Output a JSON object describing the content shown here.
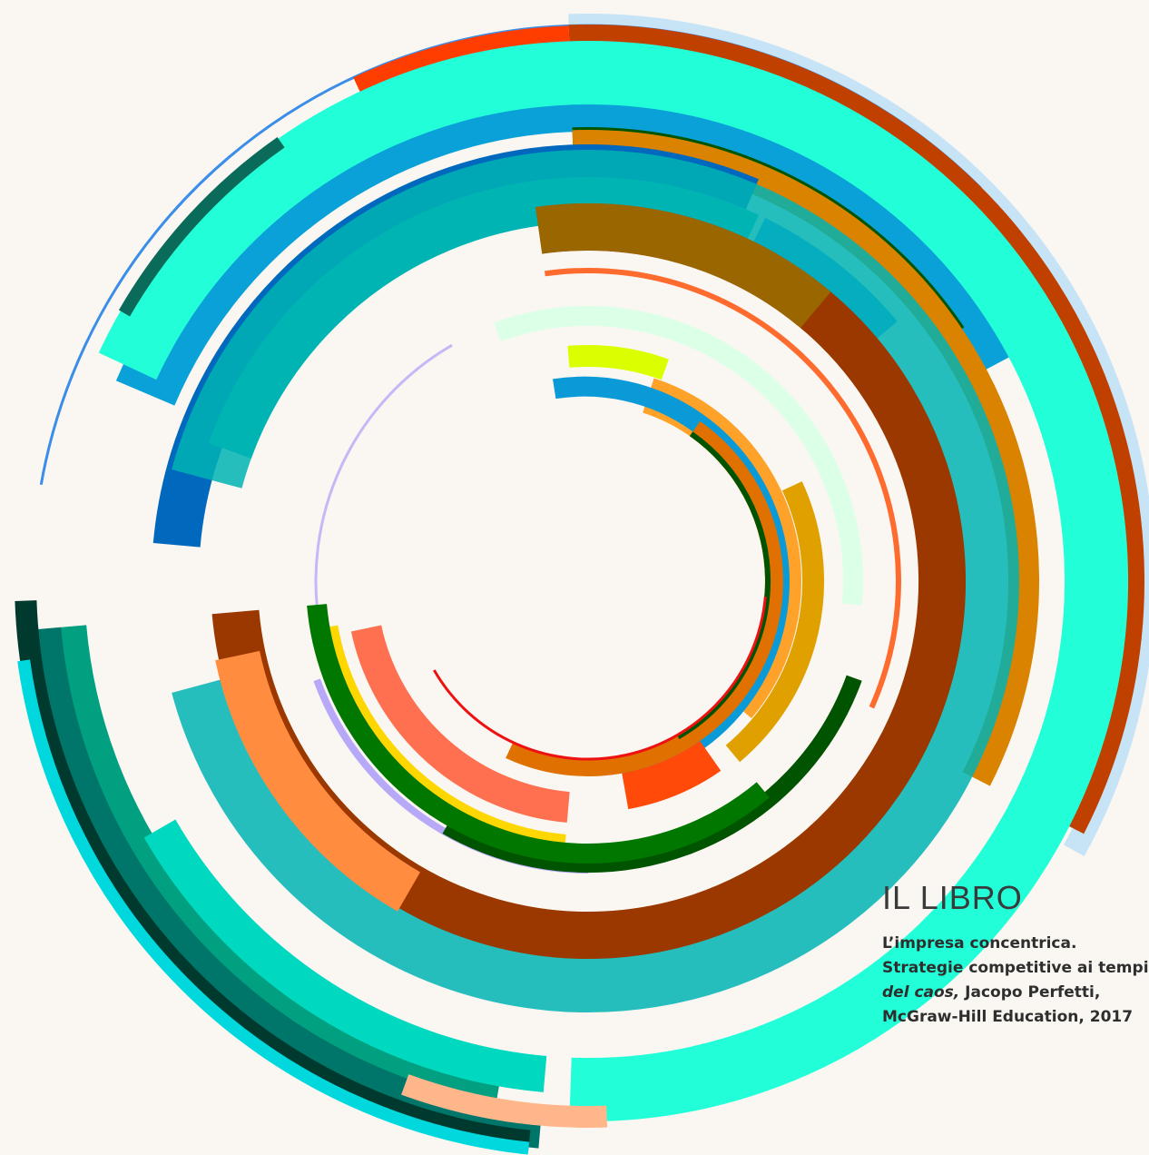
{
  "section": {
    "title": "IL LIBRO"
  },
  "book": {
    "line1": "L’impresa concentrica.",
    "line2": "Strategie competitive ai tempi",
    "line3_italic": "del caos,",
    "line3_rest": " Jacopo Perfetti,",
    "line4": "McGraw-Hill Education, 2017"
  },
  "colors": {
    "background": "#faf7f2",
    "text": "#3a3a3a"
  },
  "artwork": {
    "name": "concentric-arcs-graphic",
    "arcs": [
      {
        "color": "#c7e4f7"
      },
      {
        "color": "#3a8de8"
      },
      {
        "color": "#c04000"
      },
      {
        "color": "#ff3d00"
      },
      {
        "color": "#003a1f"
      },
      {
        "color": "#0aa0d8"
      },
      {
        "color": "#d98300"
      },
      {
        "color": "#005400"
      },
      {
        "color": "#2090ff"
      },
      {
        "color": "#0068bd"
      },
      {
        "color": "#00b4b4"
      },
      {
        "color": "#00a080"
      },
      {
        "color": "#22ffd8"
      },
      {
        "color": "#00d8c0"
      },
      {
        "color": "#00766a"
      },
      {
        "color": "#003a2e"
      },
      {
        "color": "#0a6b5a"
      },
      {
        "color": "#00d8dd"
      },
      {
        "color": "#ffb68a"
      },
      {
        "color": "#9b3800"
      },
      {
        "color": "#9a6600"
      },
      {
        "color": "#ff8c3f"
      },
      {
        "color": "#b8a8f8"
      },
      {
        "color": "#fe6b2e"
      },
      {
        "color": "#dcffe8"
      },
      {
        "color": "#dcff00"
      },
      {
        "color": "#ffa22a"
      },
      {
        "color": "#e0a000"
      },
      {
        "color": "#ffd700"
      },
      {
        "color": "#0a9ad8"
      },
      {
        "color": "#ff7050"
      },
      {
        "color": "#e07000"
      },
      {
        "color": "#ee1111"
      },
      {
        "color": "#007800"
      },
      {
        "color": "#ff4a0a"
      }
    ]
  }
}
